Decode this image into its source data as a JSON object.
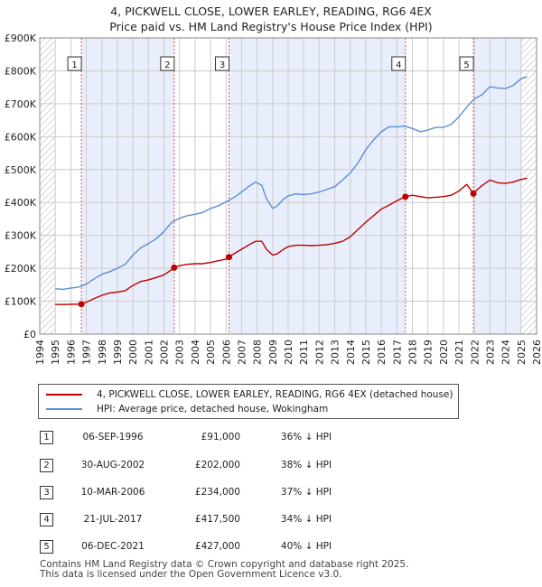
{
  "header": {
    "title_line1": "4, PICKWELL CLOSE, LOWER EARLEY, READING, RG6 4EX",
    "title_line2": "Price paid vs. HM Land Registry's House Price Index (HPI)"
  },
  "colors": {
    "property": "#c00000",
    "hpi": "#5b8ed6",
    "shade": "#e8eefb",
    "marker_line": "#d9534f",
    "grid": "#cccccc",
    "hatch": "#bbbbbb"
  },
  "chart_data": {
    "type": "line",
    "title": "Price paid vs. HM Land Registry's House Price Index (HPI)",
    "xlabel": "",
    "ylabel": "",
    "xlim": [
      1994.0,
      2026.0
    ],
    "ylim": [
      0,
      900000
    ],
    "x_ticks": [
      "1994",
      "1995",
      "1996",
      "1997",
      "1998",
      "1999",
      "2000",
      "2001",
      "2002",
      "2003",
      "2004",
      "2005",
      "2006",
      "2007",
      "2008",
      "2009",
      "2010",
      "2011",
      "2012",
      "2013",
      "2014",
      "2015",
      "2016",
      "2017",
      "2018",
      "2019",
      "2020",
      "2021",
      "2022",
      "2023",
      "2024",
      "2025",
      "2026"
    ],
    "y_ticks": [
      {
        "value": 0,
        "label": "£0"
      },
      {
        "value": 100000,
        "label": "£100K"
      },
      {
        "value": 200000,
        "label": "£200K"
      },
      {
        "value": 300000,
        "label": "£300K"
      },
      {
        "value": 400000,
        "label": "£400K"
      },
      {
        "value": 500000,
        "label": "£500K"
      },
      {
        "value": 600000,
        "label": "£600K"
      },
      {
        "value": 700000,
        "label": "£700K"
      },
      {
        "value": 800000,
        "label": "£800K"
      },
      {
        "value": 900000,
        "label": "£900K"
      }
    ],
    "data_start": 1995.0,
    "hatched_after": 2025.0,
    "series": [
      {
        "name": "4, PICKWELL CLOSE, LOWER EARLEY, READING, RG6 4EX (detached house)",
        "color": "#c00000",
        "x": [
          1995.0,
          1995.5,
          1996.0,
          1996.5,
          1996.68,
          1997.0,
          1997.5,
          1998.0,
          1998.5,
          1999.0,
          1999.5,
          2000.0,
          2000.5,
          2001.0,
          2001.5,
          2002.0,
          2002.5,
          2002.66,
          2003.0,
          2003.5,
          2004.0,
          2004.5,
          2005.0,
          2005.5,
          2006.0,
          2006.19,
          2006.5,
          2007.0,
          2007.5,
          2007.9,
          2008.3,
          2008.6,
          2009.0,
          2009.3,
          2009.7,
          2010.0,
          2010.5,
          2011.0,
          2011.5,
          2012.0,
          2012.5,
          2013.0,
          2013.5,
          2014.0,
          2014.5,
          2015.0,
          2015.5,
          2016.0,
          2016.5,
          2017.0,
          2017.55,
          2018.0,
          2018.5,
          2019.0,
          2019.5,
          2020.0,
          2020.5,
          2021.0,
          2021.5,
          2021.93,
          2022.2,
          2022.5,
          2023.0,
          2023.5,
          2024.0,
          2024.5,
          2025.0,
          2025.4
        ],
        "y": [
          90000,
          90000,
          90500,
          91000,
          91000,
          97000,
          108000,
          118000,
          125000,
          128000,
          132000,
          148000,
          160000,
          165000,
          172000,
          180000,
          196000,
          202000,
          208000,
          212000,
          214000,
          214000,
          218000,
          223000,
          228000,
          234000,
          244000,
          258000,
          272000,
          282000,
          282000,
          258000,
          240000,
          244000,
          258000,
          266000,
          270000,
          270000,
          269000,
          270000,
          272000,
          276000,
          282000,
          296000,
          318000,
          340000,
          360000,
          380000,
          392000,
          405000,
          417500,
          422000,
          418000,
          414000,
          416000,
          418000,
          422000,
          435000,
          455000,
          427000,
          440000,
          452000,
          468000,
          460000,
          458000,
          462000,
          470000,
          474000
        ]
      },
      {
        "name": "HPI: Average price, detached house, Wokingham",
        "color": "#5b8ed6",
        "x": [
          1995.0,
          1995.5,
          1996.0,
          1996.5,
          1997.0,
          1997.5,
          1998.0,
          1998.5,
          1999.0,
          1999.5,
          2000.0,
          2000.5,
          2001.0,
          2001.5,
          2002.0,
          2002.5,
          2003.0,
          2003.5,
          2004.0,
          2004.5,
          2005.0,
          2005.5,
          2006.0,
          2006.5,
          2007.0,
          2007.5,
          2007.9,
          2008.3,
          2008.6,
          2009.0,
          2009.3,
          2009.7,
          2010.0,
          2010.5,
          2011.0,
          2011.5,
          2012.0,
          2012.5,
          2013.0,
          2013.5,
          2014.0,
          2014.5,
          2015.0,
          2015.5,
          2016.0,
          2016.5,
          2017.0,
          2017.5,
          2018.0,
          2018.5,
          2019.0,
          2019.5,
          2020.0,
          2020.5,
          2021.0,
          2021.5,
          2022.0,
          2022.5,
          2023.0,
          2023.5,
          2024.0,
          2024.5,
          2025.0,
          2025.4
        ],
        "y": [
          138000,
          136000,
          140000,
          143000,
          152000,
          168000,
          182000,
          190000,
          200000,
          212000,
          240000,
          262000,
          275000,
          290000,
          312000,
          340000,
          352000,
          360000,
          364000,
          370000,
          382000,
          390000,
          402000,
          415000,
          432000,
          450000,
          462000,
          452000,
          412000,
          382000,
          390000,
          410000,
          420000,
          426000,
          424000,
          426000,
          432000,
          440000,
          448000,
          468000,
          490000,
          520000,
          560000,
          590000,
          615000,
          630000,
          630000,
          632000,
          625000,
          615000,
          620000,
          628000,
          628000,
          638000,
          660000,
          690000,
          715000,
          728000,
          752000,
          748000,
          746000,
          756000,
          776000,
          782000
        ]
      }
    ],
    "sales": [
      {
        "n": "1",
        "x": 1996.68,
        "value": 91000
      },
      {
        "n": "2",
        "x": 2002.66,
        "value": 202000
      },
      {
        "n": "3",
        "x": 2006.19,
        "value": 234000
      },
      {
        "n": "4",
        "x": 2017.55,
        "value": 417500
      },
      {
        "n": "5",
        "x": 2021.93,
        "value": 427000
      }
    ]
  },
  "legend": {
    "property_label": "4, PICKWELL CLOSE, LOWER EARLEY, READING, RG6 4EX (detached house)",
    "hpi_label": "HPI: Average price, detached house, Wokingham"
  },
  "sales_table": [
    {
      "n": "1",
      "date": "06-SEP-1996",
      "price": "£91,000",
      "hpi": "36% ↓ HPI"
    },
    {
      "n": "2",
      "date": "30-AUG-2002",
      "price": "£202,000",
      "hpi": "38% ↓ HPI"
    },
    {
      "n": "3",
      "date": "10-MAR-2006",
      "price": "£234,000",
      "hpi": "37% ↓ HPI"
    },
    {
      "n": "4",
      "date": "21-JUL-2017",
      "price": "£417,500",
      "hpi": "34% ↓ HPI"
    },
    {
      "n": "5",
      "date": "06-DEC-2021",
      "price": "£427,000",
      "hpi": "40% ↓ HPI"
    }
  ],
  "footer": {
    "line1": "Contains HM Land Registry data © Crown copyright and database right 2025.",
    "line2": "This data is licensed under the Open Government Licence v3.0."
  }
}
